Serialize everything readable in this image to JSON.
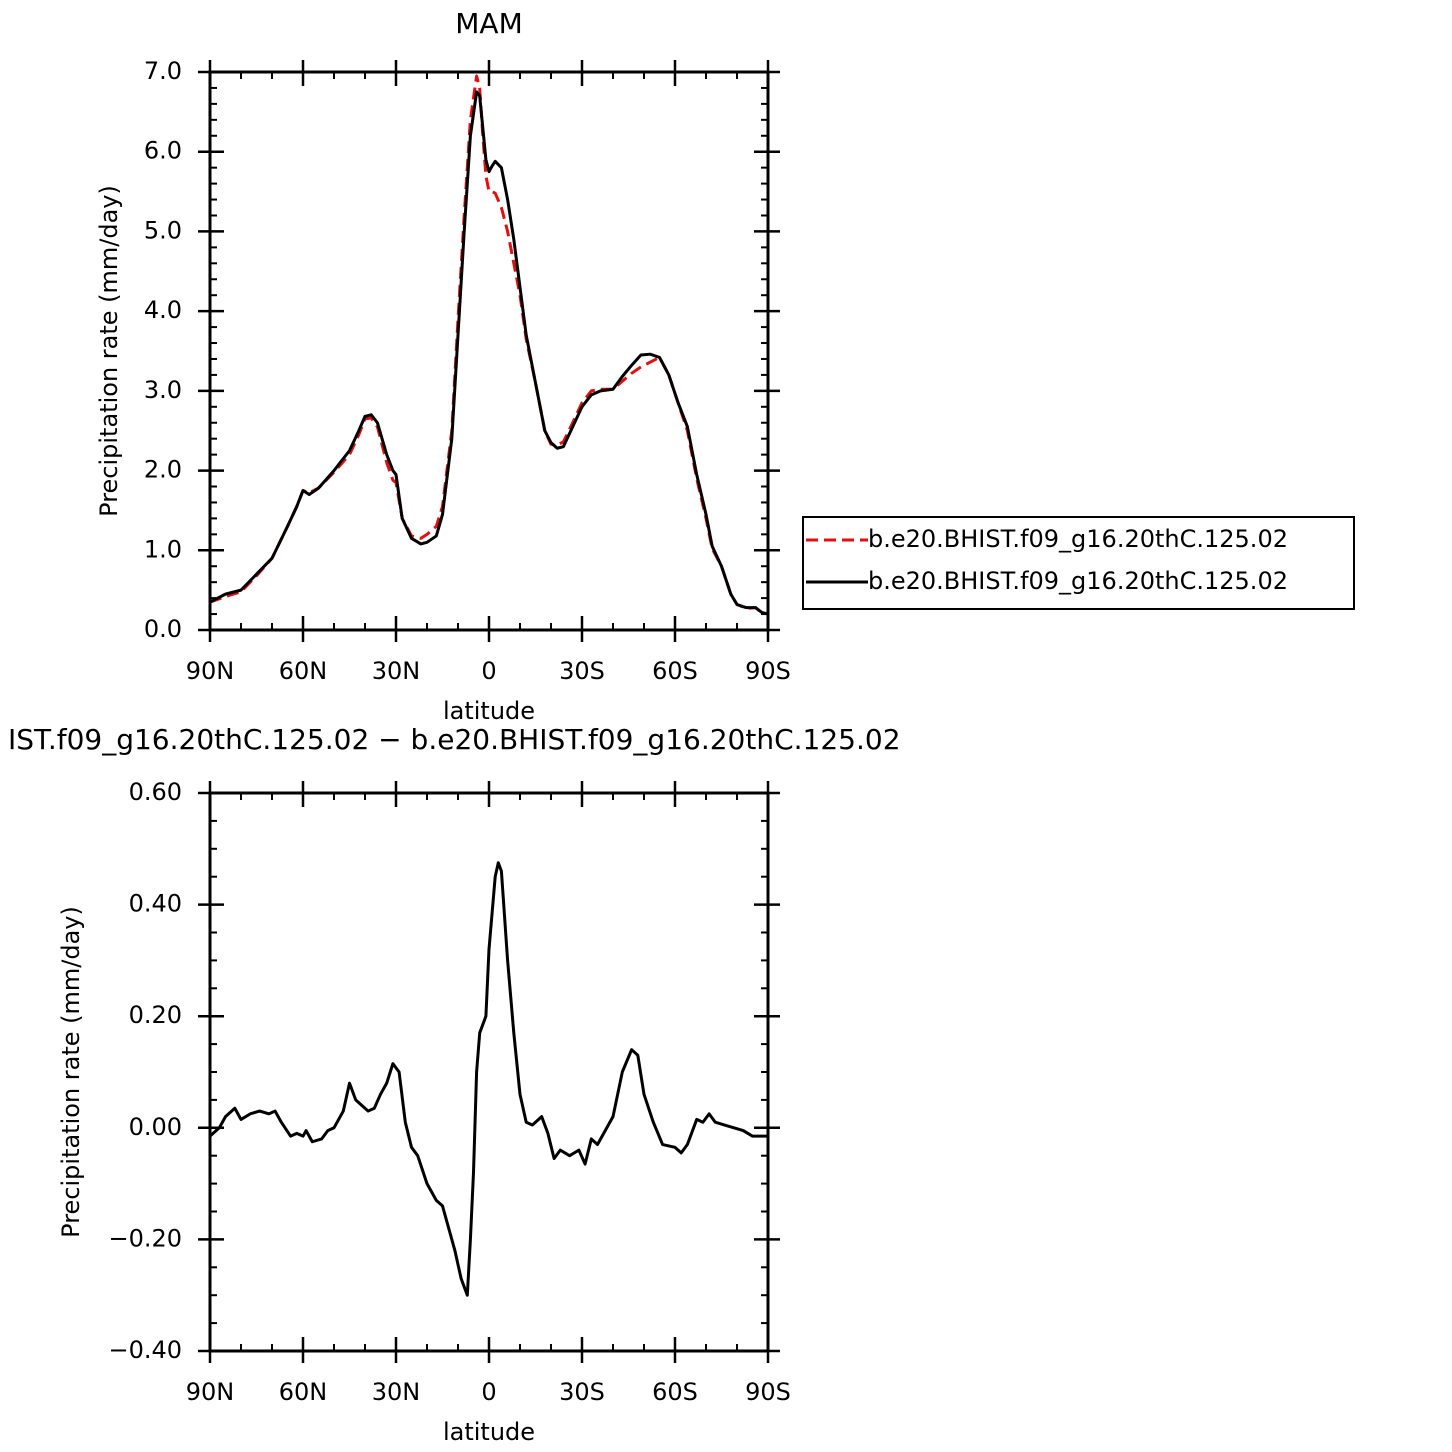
{
  "chart_data": [
    {
      "type": "line",
      "title": "MAM",
      "xlabel": "latitude",
      "ylabel": "Precipitation rate (mm/day)",
      "x": [
        90,
        85,
        80,
        75,
        70,
        65,
        62,
        60,
        58,
        55,
        50,
        45,
        42,
        40,
        38,
        36,
        33,
        31,
        30,
        28,
        25,
        22,
        20,
        17,
        15,
        12,
        10,
        8,
        6,
        4,
        3,
        2,
        1,
        0,
        -1,
        -2,
        -4,
        -6,
        -8,
        -10,
        -12,
        -15,
        -18,
        -20,
        -22,
        -24,
        -27,
        -30,
        -33,
        -36,
        -40,
        -43,
        -46,
        -49,
        -52,
        -55,
        -58,
        -61,
        -64,
        -67,
        -70,
        -72,
        -75,
        -78,
        -80,
        -83,
        -86,
        -88,
        -90
      ],
      "series": [
        {
          "name": "b.e20.BHIST.f09_g16.20thC.125.02",
          "color": "#e01010",
          "dash": true,
          "values": [
            0.35,
            0.42,
            0.48,
            0.68,
            0.9,
            1.3,
            1.55,
            1.75,
            1.72,
            1.78,
            1.98,
            2.2,
            2.45,
            2.65,
            2.66,
            2.55,
            2.1,
            1.88,
            1.85,
            1.4,
            1.18,
            1.15,
            1.2,
            1.3,
            1.55,
            2.5,
            3.9,
            5.2,
            6.4,
            6.95,
            6.8,
            6.2,
            5.7,
            5.5,
            5.5,
            5.48,
            5.3,
            5.0,
            4.6,
            4.2,
            3.65,
            3.1,
            2.5,
            2.33,
            2.32,
            2.36,
            2.6,
            2.85,
            3.0,
            3.02,
            3.02,
            3.12,
            3.22,
            3.3,
            3.36,
            3.42,
            3.2,
            2.85,
            2.5,
            1.9,
            1.4,
            1.02,
            0.8,
            0.45,
            0.32,
            0.27,
            0.28,
            0.22,
            0.2
          ]
        },
        {
          "name": "b.e20.BHIST.f09_g16.20thC.125.02",
          "color": "#000000",
          "dash": false,
          "values": [
            0.35,
            0.45,
            0.5,
            0.7,
            0.9,
            1.3,
            1.55,
            1.75,
            1.7,
            1.78,
            2.0,
            2.25,
            2.5,
            2.68,
            2.7,
            2.6,
            2.2,
            2.0,
            1.95,
            1.4,
            1.15,
            1.08,
            1.1,
            1.18,
            1.45,
            2.4,
            3.7,
            5.0,
            6.2,
            6.75,
            6.7,
            6.3,
            5.9,
            5.75,
            5.82,
            5.88,
            5.8,
            5.4,
            4.9,
            4.3,
            3.7,
            3.1,
            2.5,
            2.35,
            2.28,
            2.3,
            2.55,
            2.8,
            2.95,
            3.0,
            3.02,
            3.18,
            3.32,
            3.45,
            3.46,
            3.42,
            3.2,
            2.85,
            2.55,
            1.95,
            1.45,
            1.05,
            0.8,
            0.45,
            0.32,
            0.28,
            0.28,
            0.22,
            0.2
          ]
        }
      ],
      "xlim": [
        90,
        -90
      ],
      "xticks": [
        {
          "value": 90,
          "label": "90N"
        },
        {
          "value": 60,
          "label": "60N"
        },
        {
          "value": 30,
          "label": "30N"
        },
        0,
        {
          "value": -30,
          "label": "30S"
        },
        {
          "value": -60,
          "label": "60S"
        },
        {
          "value": -90,
          "label": "90S"
        }
      ],
      "ylim": [
        0,
        7
      ],
      "yticks": [
        {
          "value": 0,
          "label": "0.0"
        },
        {
          "value": 1,
          "label": "1.0"
        },
        {
          "value": 2,
          "label": "2.0"
        },
        {
          "value": 3,
          "label": "3.0"
        },
        {
          "value": 4,
          "label": "4.0"
        },
        {
          "value": 5,
          "label": "5.0"
        },
        {
          "value": 6,
          "label": "6.0"
        },
        {
          "value": 7,
          "label": "7.0"
        }
      ],
      "legend": "right"
    },
    {
      "type": "line",
      "title": "IST.f09_g16.20thC.125.02 − b.e20.BHIST.f09_g16.20thC.125.02",
      "xlabel": "latitude",
      "ylabel": "Precipitation rate (mm/day)",
      "x": [
        90,
        87,
        85,
        82,
        80,
        77,
        74,
        71,
        69,
        67,
        64,
        62,
        60,
        59,
        57,
        54,
        52,
        50,
        47,
        45,
        43,
        41,
        39,
        37,
        35,
        33,
        31,
        29,
        27,
        25,
        23,
        20,
        17,
        15,
        13,
        11,
        9,
        7,
        6,
        5,
        4,
        3,
        1,
        0,
        -2,
        -3,
        -4,
        -6,
        -8,
        -10,
        -12,
        -14,
        -17,
        -19,
        -21,
        -23,
        -26,
        -29,
        -31,
        -33,
        -35,
        -37,
        -40,
        -43,
        -46,
        -48,
        -50,
        -53,
        -56,
        -60,
        -62,
        -64,
        -67,
        -69,
        -71,
        -73,
        -76,
        -79,
        -82,
        -85,
        -90
      ],
      "series": [
        {
          "color": "#000000",
          "dash": false,
          "values": [
            -0.015,
            0.0,
            0.02,
            0.035,
            0.015,
            0.025,
            0.03,
            0.025,
            0.03,
            0.01,
            -0.015,
            -0.01,
            -0.015,
            -0.005,
            -0.025,
            -0.02,
            -0.005,
            0.0,
            0.03,
            0.08,
            0.05,
            0.04,
            0.03,
            0.035,
            0.06,
            0.08,
            0.115,
            0.1,
            0.01,
            -0.035,
            -0.05,
            -0.1,
            -0.13,
            -0.14,
            -0.18,
            -0.22,
            -0.27,
            -0.3,
            -0.2,
            -0.08,
            0.1,
            0.17,
            0.2,
            0.32,
            0.45,
            0.475,
            0.46,
            0.3,
            0.17,
            0.06,
            0.01,
            0.005,
            0.02,
            -0.01,
            -0.055,
            -0.04,
            -0.05,
            -0.04,
            -0.065,
            -0.02,
            -0.03,
            -0.01,
            0.02,
            0.1,
            0.14,
            0.13,
            0.06,
            0.01,
            -0.03,
            -0.035,
            -0.045,
            -0.03,
            0.015,
            0.01,
            0.025,
            0.01,
            0.005,
            0.0,
            -0.005,
            -0.015,
            -0.015
          ]
        }
      ],
      "xlim": [
        90,
        -90
      ],
      "xticks": [
        {
          "value": 90,
          "label": "90N"
        },
        {
          "value": 60,
          "label": "60N"
        },
        {
          "value": 30,
          "label": "30N"
        },
        0,
        {
          "value": -30,
          "label": "30S"
        },
        {
          "value": -60,
          "label": "60S"
        },
        {
          "value": -90,
          "label": "90S"
        }
      ],
      "ylim": [
        -0.4,
        0.6
      ],
      "yticks": [
        {
          "value": -0.4,
          "label": "−0.40"
        },
        {
          "value": -0.2,
          "label": "−0.20"
        },
        {
          "value": 0,
          "label": "0.00"
        },
        {
          "value": 0.2,
          "label": "0.20"
        },
        {
          "value": 0.4,
          "label": "0.40"
        },
        {
          "value": 0.6,
          "label": "0.60"
        }
      ]
    }
  ]
}
